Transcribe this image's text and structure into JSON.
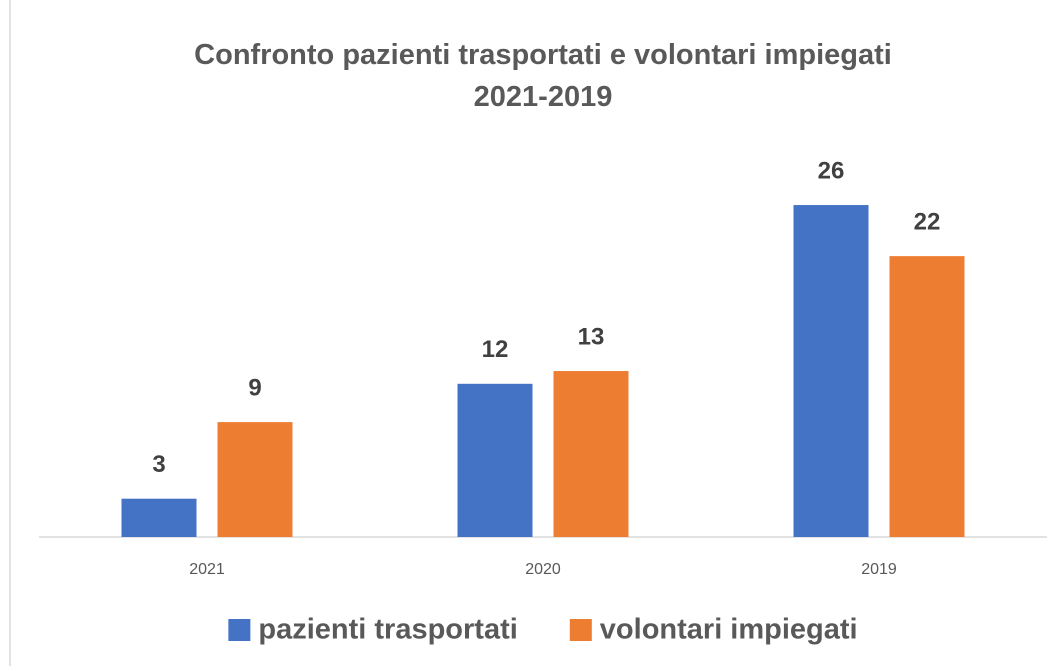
{
  "chart_data": {
    "type": "bar",
    "title": "Confronto pazienti trasportati e volontari impiegati 2021-2019",
    "categories": [
      "2021",
      "2020",
      "2019"
    ],
    "series": [
      {
        "name": "pazienti trasportati",
        "color": "#4472c4",
        "values": [
          3,
          12,
          26
        ]
      },
      {
        "name": "volontari impiegati",
        "color": "#ed7d31",
        "values": [
          9,
          13,
          22
        ]
      }
    ],
    "ylim": [
      0,
      30
    ],
    "legend": "bottom"
  }
}
